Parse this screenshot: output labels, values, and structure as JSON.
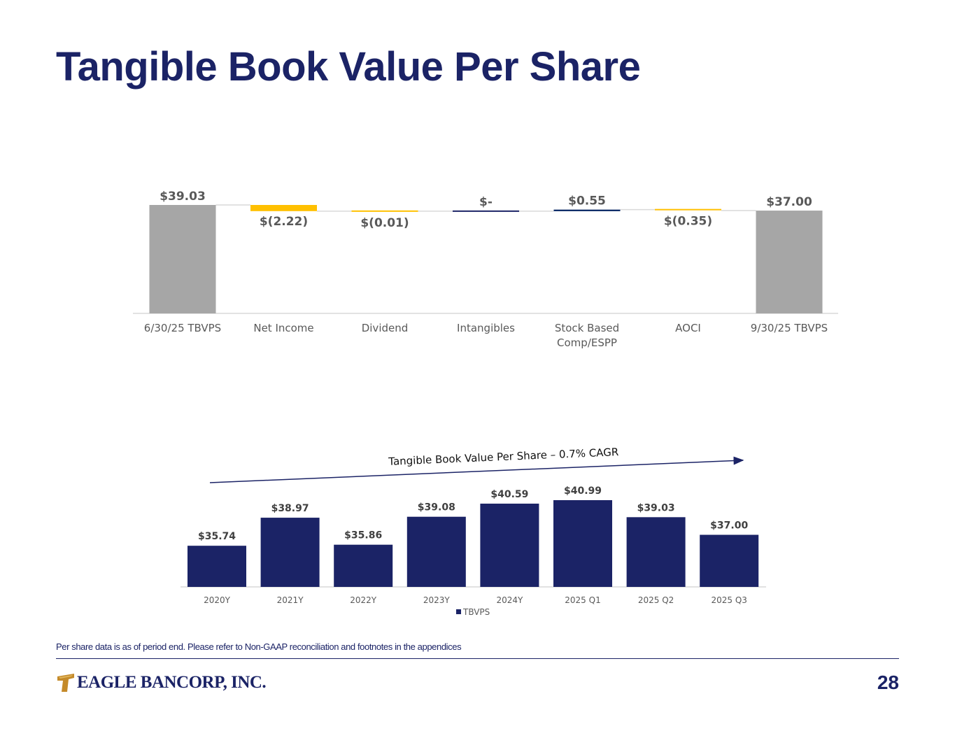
{
  "page": {
    "title": "Tangible Book Value Per Share",
    "footnote": "Per share data is as of period end. Please refer to Non-GAAP reconciliation and footnotes in the appendices",
    "page_number": "28",
    "logo": {
      "text": "EAGLE BANCORP, INC."
    }
  },
  "colors": {
    "navy": "#1b2366",
    "gray": "#a6a6a6",
    "gold": "#ffc000",
    "dark_navy": "#002060"
  },
  "chart_data": [
    {
      "type": "waterfall",
      "title": "",
      "categories": [
        "6/30/25 TBVPS",
        "Net Income",
        "Dividend",
        "Intangibles",
        "Stock Based Comp/ESPP",
        "AOCI",
        "9/30/25 TBVPS"
      ],
      "category_lines": [
        [
          "6/30/25 TBVPS"
        ],
        [
          "Net Income"
        ],
        [
          "Dividend"
        ],
        [
          "Intangibles"
        ],
        [
          "Stock Based",
          "Comp/ESPP"
        ],
        [
          "AOCI"
        ],
        [
          "9/30/25 TBVPS"
        ]
      ],
      "values": [
        39.03,
        -2.22,
        -0.01,
        0,
        0.55,
        -0.35,
        37.0
      ],
      "kinds": [
        "total",
        "delta",
        "delta",
        "delta",
        "delta",
        "delta",
        "total"
      ],
      "labels": [
        "$39.03",
        "$(2.22)",
        "$(0.01)",
        "$-",
        "$0.55",
        "$(0.35)",
        "$37.00"
      ],
      "bar_colors": [
        "#a6a6a6",
        "#ffc000",
        "#ffc000",
        "#1b2366",
        "#002060",
        "#ffc000",
        "#a6a6a6"
      ],
      "ylim": [
        0,
        39.03
      ]
    },
    {
      "type": "bar",
      "title": "Tangible Book Value Per Share – 0.7% CAGR",
      "categories": [
        "2020Y",
        "2021Y",
        "2022Y",
        "2023Y",
        "2024Y",
        "2025 Q1",
        "2025 Q2",
        "2025 Q3"
      ],
      "series": [
        {
          "name": "TBVPS",
          "values": [
            35.74,
            38.97,
            35.86,
            39.08,
            40.59,
            40.99,
            39.03,
            37.0
          ],
          "labels": [
            "$35.74",
            "$38.97",
            "$35.86",
            "$39.08",
            "$40.59",
            "$40.99",
            "$39.03",
            "$37.00"
          ]
        }
      ],
      "legend": "bottom",
      "ylim": [
        31,
        41
      ]
    }
  ]
}
